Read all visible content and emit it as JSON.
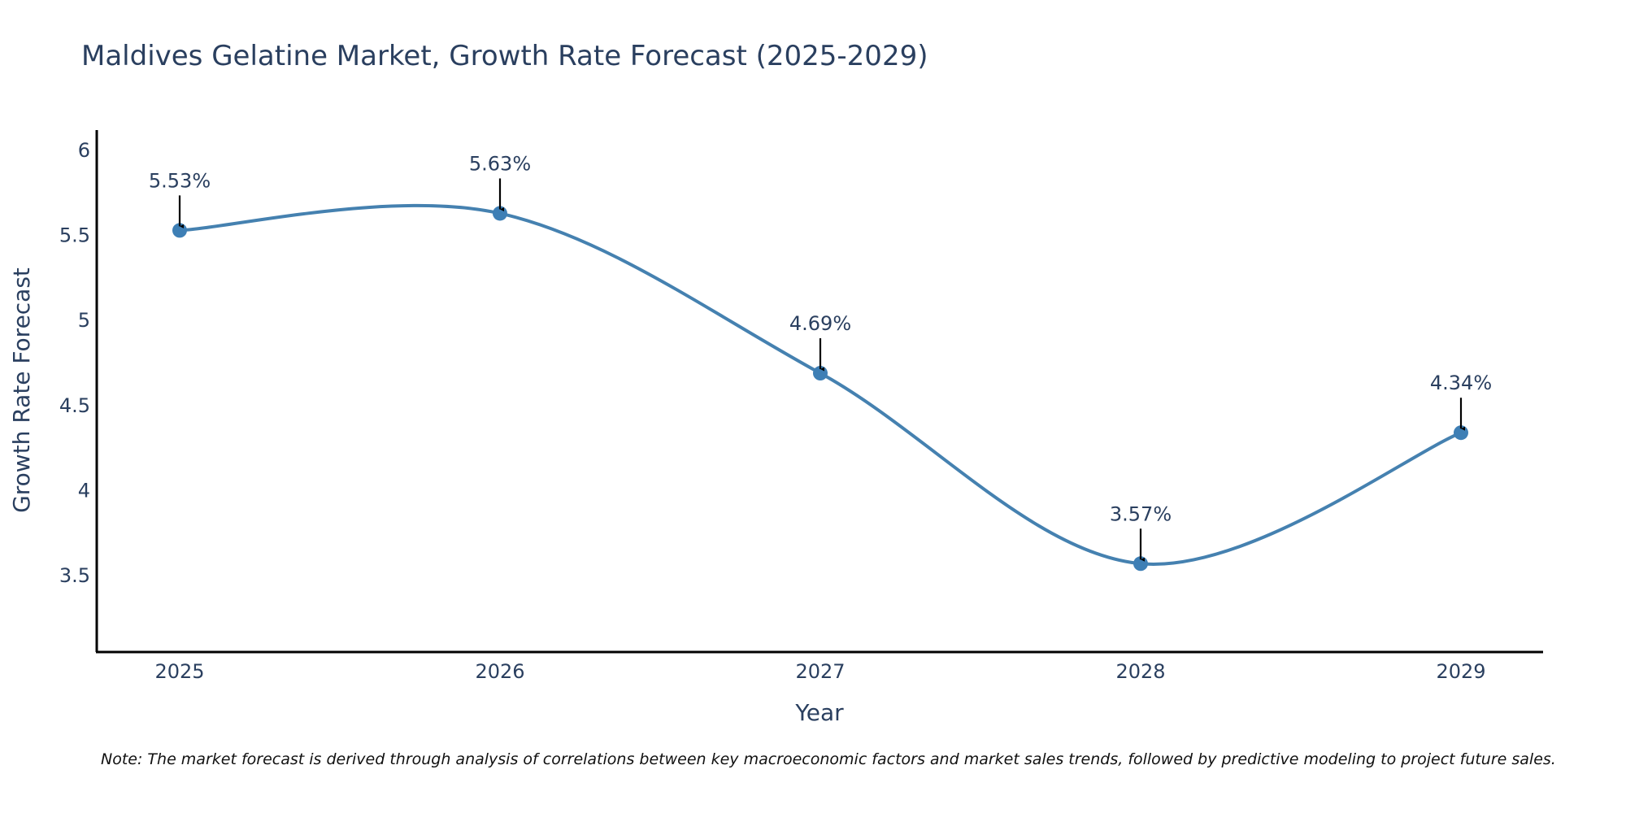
{
  "colors": {
    "line": "#4581b0",
    "marker": "#3e7fb5",
    "axis": "#000000",
    "arrow": "#000000",
    "text": "#2a3f5f"
  },
  "note": "Note: The market forecast is derived through analysis of correlations between key macroeconomic factors and market sales trends, followed by predictive modeling to project future sales.",
  "chart_data": {
    "type": "line",
    "title": "Maldives Gelatine Market, Growth Rate Forecast (2025-2029)",
    "xlabel": "Year",
    "ylabel": "Growth Rate Forecast",
    "categories": [
      "2025",
      "2026",
      "2027",
      "2028",
      "2029"
    ],
    "values": [
      5.53,
      5.63,
      4.69,
      3.57,
      4.34
    ],
    "data_labels": [
      "5.53%",
      "5.63%",
      "4.69%",
      "3.57%",
      "4.34%"
    ],
    "y_ticks": [
      3.5,
      4,
      4.5,
      5,
      5.5,
      6
    ],
    "y_tick_labels": [
      "3.5",
      "4",
      "4.5",
      "5",
      "5.5",
      "6"
    ],
    "ylim": [
      3.05,
      6.12
    ],
    "line_shape": "spline",
    "grid": false,
    "legend": "none"
  }
}
